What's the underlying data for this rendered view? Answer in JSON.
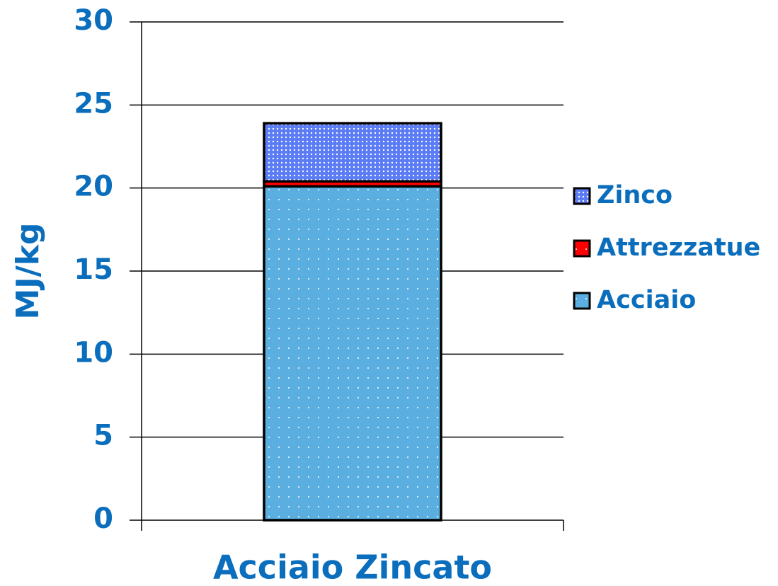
{
  "chart_data": {
    "type": "stacked_bar",
    "y_label": "MJ/kg",
    "categories": [
      "Acciaio Zincato"
    ],
    "series": [
      {
        "name": "Acciaio",
        "color": "#5aafe0",
        "values": [
          20.1
        ]
      },
      {
        "name": "Attrezzatue",
        "color": "#ff0000",
        "values": [
          0.3
        ]
      },
      {
        "name": "Zinco",
        "color": "#5b7cf5",
        "values": [
          3.5
        ]
      }
    ],
    "ylim": [
      0,
      30
    ],
    "yticks": [
      0,
      5,
      10,
      15,
      20,
      25,
      30
    ],
    "grid": true,
    "legend": "right"
  }
}
